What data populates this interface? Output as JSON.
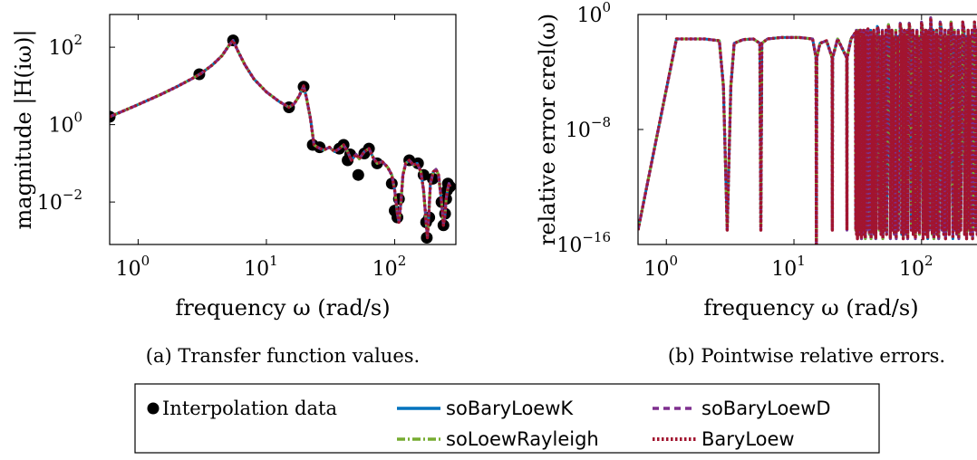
{
  "colors": {
    "interp": "#000000",
    "soBaryLoewK": "#0072BD",
    "soLoewRayleigh": "#77AC30",
    "soBaryLoewD": "#7E2F8E",
    "BaryLoew": "#A2142F"
  },
  "chart_data": [
    {
      "type": "line",
      "xscale": "log",
      "yscale": "log",
      "xlim": [
        0.6,
        300
      ],
      "ylim": [
        0.0008,
        700
      ],
      "xlabel": "frequency ω (rad/s)",
      "ylabel": "magnitude |H(iω)|",
      "xticks": [
        {
          "value": 1,
          "base": "10",
          "exp": "0"
        },
        {
          "value": 10,
          "base": "10",
          "exp": "1"
        },
        {
          "value": 100,
          "base": "10",
          "exp": "2"
        }
      ],
      "yticks": [
        {
          "value": 0.01,
          "base": "10",
          "exp": "−2"
        },
        {
          "value": 1,
          "base": "10",
          "exp": "0"
        },
        {
          "value": 100,
          "base": "10",
          "exp": "2"
        }
      ],
      "caption": "(a) Transfer function values.",
      "curve": {
        "x": [
          0.6,
          0.8,
          1.0,
          1.5,
          2.0,
          2.6,
          3.1,
          3.8,
          4.5,
          5.1,
          5.5,
          6.0,
          6.8,
          8.0,
          10,
          12.5,
          15,
          16.5,
          18,
          19.5,
          20.5,
          22,
          23.5,
          25,
          28,
          31,
          34,
          37,
          40,
          43,
          46,
          50,
          53,
          58,
          63,
          68,
          73,
          80,
          88,
          95,
          100,
          105,
          108,
          112,
          116,
          122,
          130,
          140,
          150,
          160,
          168,
          176,
          180,
          184,
          190,
          200,
          210,
          220,
          232,
          240,
          247,
          252,
          258,
          265,
          270
        ],
        "y": [
          1.6,
          2.4,
          3.3,
          6.0,
          9.5,
          15,
          21,
          35,
          60,
          110,
          150,
          80,
          35,
          15,
          7,
          4.0,
          2.8,
          3.5,
          5.5,
          10,
          5,
          1.5,
          0.3,
          0.26,
          0.22,
          0.26,
          0.2,
          0.24,
          0.3,
          0.2,
          0.12,
          0.17,
          0.13,
          0.2,
          0.24,
          0.14,
          0.1,
          0.11,
          0.08,
          0.05,
          0.02,
          0.005,
          0.003,
          0.01,
          0.05,
          0.1,
          0.12,
          0.09,
          0.1,
          0.06,
          0.02,
          0.003,
          0.0012,
          0.004,
          0.03,
          0.06,
          0.07,
          0.05,
          0.01,
          0.0025,
          0.005,
          0.012,
          0.02,
          0.03,
          0.025
        ]
      },
      "series": [
        {
          "name": "Interpolation data",
          "key": "interp",
          "style": "markers",
          "x": [
            0.6,
            3.0,
            5.5,
            15,
            19.5,
            23,
            26,
            37,
            40,
            43,
            45,
            52,
            58,
            63,
            73,
            95,
            100,
            105,
            108,
            130,
            152,
            168,
            176,
            178,
            186,
            198,
            232,
            240,
            247,
            252,
            256,
            260,
            265,
            270
          ],
          "y": [
            1.6,
            20,
            150,
            2.8,
            9.5,
            0.3,
            0.26,
            0.24,
            0.3,
            0.12,
            0.17,
            0.05,
            0.18,
            0.24,
            0.1,
            0.03,
            0.006,
            0.004,
            0.012,
            0.12,
            0.1,
            0.05,
            0.003,
            0.0012,
            0.004,
            0.04,
            0.01,
            0.0025,
            0.005,
            0.012,
            0.02,
            0.03,
            0.025,
            0.025
          ]
        },
        {
          "name": "soBaryLoewK",
          "key": "soBaryLoewK",
          "style": "solid"
        },
        {
          "name": "soLoewRayleigh",
          "key": "soLoewRayleigh",
          "style": "dashdot"
        },
        {
          "name": "soBaryLoewD",
          "key": "soBaryLoewD",
          "style": "dashed"
        },
        {
          "name": "BaryLoew",
          "key": "BaryLoew",
          "style": "dotted"
        }
      ]
    },
    {
      "type": "line",
      "xscale": "log",
      "yscale": "log",
      "xlim": [
        0.6,
        300
      ],
      "ylim": [
        1e-16,
        1
      ],
      "xlabel": "frequency ω (rad/s)",
      "ylabel": "relative error ϵrel(ω)",
      "xticks": [
        {
          "value": 1,
          "base": "10",
          "exp": "0"
        },
        {
          "value": 10,
          "base": "10",
          "exp": "1"
        },
        {
          "value": 100,
          "base": "10",
          "exp": "2"
        }
      ],
      "yticks": [
        {
          "value": 1e-16,
          "base": "10",
          "exp": "−16"
        },
        {
          "value": 1e-08,
          "base": "10",
          "exp": "−8"
        },
        {
          "value": 1,
          "base": "10",
          "exp": "0"
        }
      ],
      "caption": "(b) Pointwise relative errors.",
      "envelope": {
        "x": [
          0.6,
          1.2,
          2.0,
          2.6,
          2.8,
          3.0,
          3.2,
          3.4,
          4.0,
          4.8,
          5.4,
          5.5,
          5.6,
          6.2,
          8.0,
          11,
          14,
          14.9,
          15,
          15.1,
          16,
          18,
          19.9,
          20,
          20.1,
          22,
          25.9,
          26,
          26.1,
          28,
          30,
          33,
          38,
          45,
          55,
          68,
          80,
          100,
          118,
          140,
          170,
          210,
          260,
          300
        ],
        "y": [
          1e-15,
          0.02,
          0.02,
          0.015,
          1e-05,
          1e-15,
          1e-05,
          0.01,
          0.018,
          0.02,
          0.01,
          1e-15,
          0.01,
          0.02,
          0.025,
          0.025,
          0.02,
          0.001,
          1e-16,
          0.001,
          0.01,
          0.015,
          0.001,
          1e-15,
          0.001,
          0.02,
          0.001,
          1e-15,
          0.001,
          0.02,
          0.05,
          0.08,
          0.1,
          0.15,
          0.2,
          0.25,
          0.25,
          0.3,
          0.6,
          0.3,
          0.3,
          0.3,
          0.3,
          0.3
        ]
      },
      "series": [
        {
          "name": "soBaryLoewK",
          "key": "soBaryLoewK",
          "style": "solid"
        },
        {
          "name": "soLoewRayleigh",
          "key": "soLoewRayleigh",
          "style": "dashdot"
        },
        {
          "name": "soBaryLoewD",
          "key": "soBaryLoewD",
          "style": "dashed"
        },
        {
          "name": "BaryLoew",
          "key": "BaryLoew",
          "style": "dotted"
        }
      ]
    }
  ],
  "legend": {
    "placement": "bottom-center",
    "entries": [
      {
        "label": "Interpolation data",
        "key": "interp",
        "style": "marker",
        "font": "serif"
      },
      {
        "label": "soBaryLoewK",
        "key": "soBaryLoewK",
        "style": "solid",
        "font": "sans"
      },
      {
        "label": "soBaryLoewD",
        "key": "soBaryLoewD",
        "style": "dashed",
        "font": "sans"
      },
      {
        "label": "soLoewRayleigh",
        "key": "soLoewRayleigh",
        "style": "dashdot",
        "font": "sans"
      },
      {
        "label": "BaryLoew",
        "key": "BaryLoew",
        "style": "dotted",
        "font": "sans"
      }
    ]
  }
}
